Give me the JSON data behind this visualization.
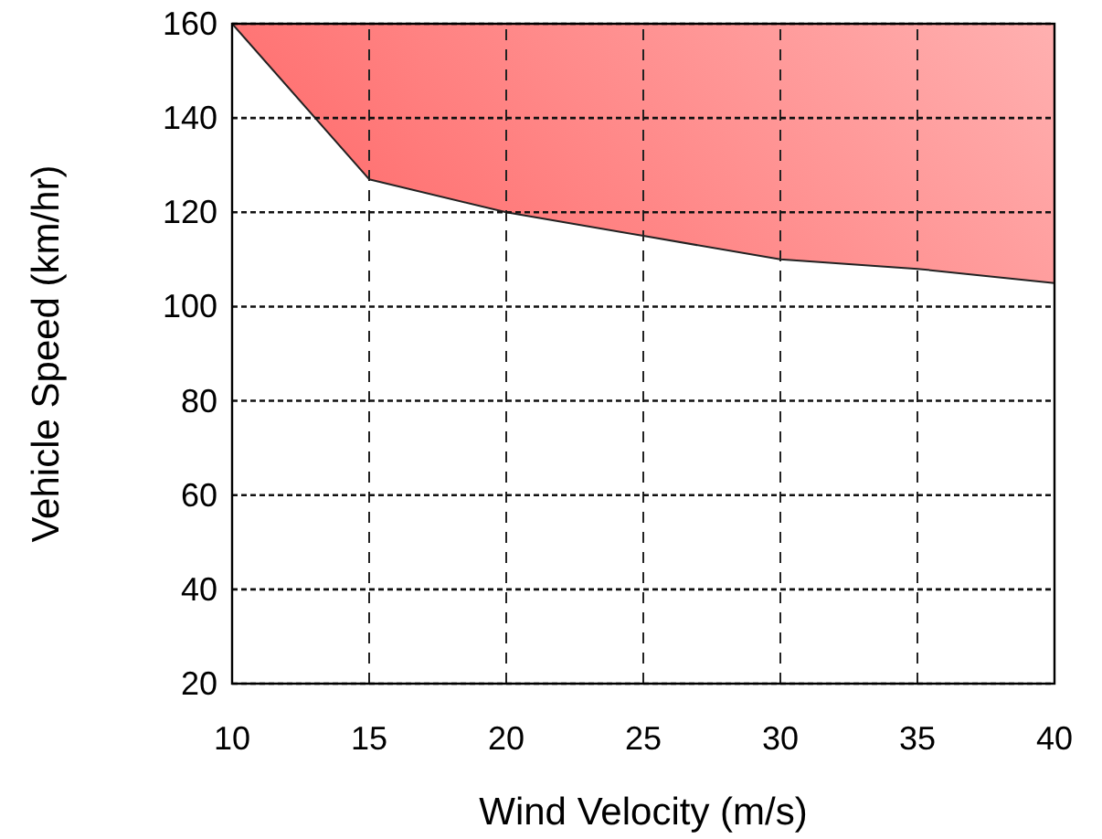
{
  "chart_data": {
    "type": "line",
    "xlabel": "Wind Velocity (m/s)",
    "ylabel": "Vehicle Speed (km/hr)",
    "x": [
      10,
      15,
      20,
      25,
      30,
      35,
      40
    ],
    "series": [
      {
        "color": "#222222",
        "values": [
          160,
          127,
          120,
          115,
          110,
          108,
          105
        ],
        "lower": [
          160,
          127,
          120,
          115,
          110,
          108,
          105
        ],
        "upper": [
          160,
          160,
          160,
          160,
          160,
          160,
          160
        ]
      }
    ],
    "xlim": [
      10,
      40
    ],
    "xticks": [
      10,
      15,
      20,
      25,
      30,
      35,
      40
    ],
    "ylim": [
      20,
      160
    ],
    "yticks": [
      20,
      40,
      60,
      80,
      100,
      120,
      140,
      160
    ],
    "grid": true,
    "line_style": "solid",
    "marker": "none"
  }
}
